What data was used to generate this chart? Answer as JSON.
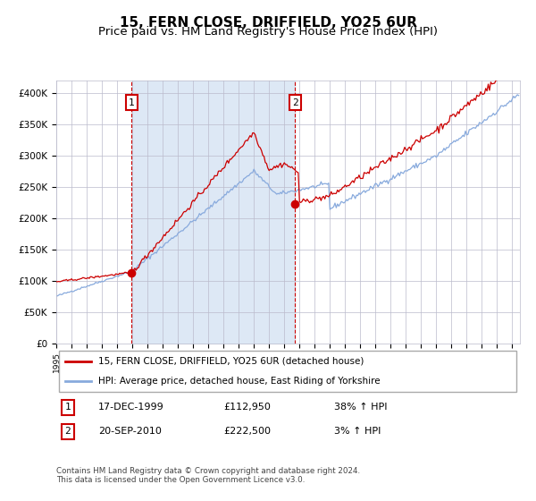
{
  "title": "15, FERN CLOSE, DRIFFIELD, YO25 6UR",
  "subtitle": "Price paid vs. HM Land Registry's House Price Index (HPI)",
  "line1_label": "15, FERN CLOSE, DRIFFIELD, YO25 6UR (detached house)",
  "line2_label": "HPI: Average price, detached house, East Riding of Yorkshire",
  "line1_color": "#cc0000",
  "line2_color": "#88aadd",
  "shade_color": "#dde8f5",
  "purchase1_date": "17-DEC-1999",
  "purchase1_price": 112950,
  "purchase1_hpi": "38% ↑ HPI",
  "purchase2_date": "20-SEP-2010",
  "purchase2_price": 222500,
  "purchase2_hpi": "3% ↑ HPI",
  "ylabel_ticks": [
    "£0",
    "£50K",
    "£100K",
    "£150K",
    "£200K",
    "£250K",
    "£300K",
    "£350K",
    "£400K"
  ],
  "ytick_vals": [
    0,
    50000,
    100000,
    150000,
    200000,
    250000,
    300000,
    350000,
    400000
  ],
  "ylim": [
    0,
    420000
  ],
  "xlim_start": 1995.0,
  "xlim_end": 2025.5,
  "purchase1_x": 1999.96,
  "purchase2_x": 2010.72,
  "footnote": "Contains HM Land Registry data © Crown copyright and database right 2024.\nThis data is licensed under the Open Government Licence v3.0.",
  "title_fontsize": 11,
  "subtitle_fontsize": 9.5,
  "axis_fontsize": 8,
  "grid_color": "#bbbbcc",
  "background_color": "#ffffff"
}
